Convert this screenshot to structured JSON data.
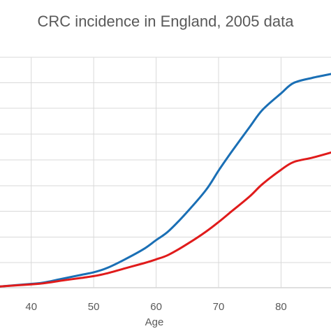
{
  "chart_data": {
    "type": "line",
    "title": "CRC incidence in England, 2005 data",
    "xlabel": "Age",
    "ylabel": "",
    "xlim": [
      35,
      88
    ],
    "ylim": [
      0,
      8.3
    ],
    "xticks": [
      40,
      50,
      60,
      70,
      80
    ],
    "grid": true,
    "legend": "none",
    "series": [
      {
        "color": "#1a6fb5",
        "x": [
          35,
          40,
          42,
          45,
          48,
          50,
          52,
          55,
          58,
          60,
          62,
          65,
          68,
          70,
          72,
          75,
          77,
          80,
          82,
          85,
          88
        ],
        "y": [
          0.05,
          0.15,
          0.2,
          0.35,
          0.5,
          0.6,
          0.75,
          1.1,
          1.5,
          1.85,
          2.2,
          2.95,
          3.8,
          4.55,
          5.25,
          6.25,
          6.9,
          7.55,
          7.95,
          8.15,
          8.3
        ]
      },
      {
        "color": "#e01b1b",
        "x": [
          35,
          40,
          42,
          45,
          48,
          50,
          52,
          55,
          58,
          60,
          62,
          65,
          68,
          70,
          72,
          75,
          77,
          80,
          82,
          85,
          88
        ],
        "y": [
          0.05,
          0.13,
          0.17,
          0.28,
          0.38,
          0.45,
          0.55,
          0.75,
          0.95,
          1.1,
          1.28,
          1.7,
          2.18,
          2.55,
          2.95,
          3.55,
          4.02,
          4.58,
          4.88,
          5.05,
          5.25
        ]
      }
    ]
  }
}
